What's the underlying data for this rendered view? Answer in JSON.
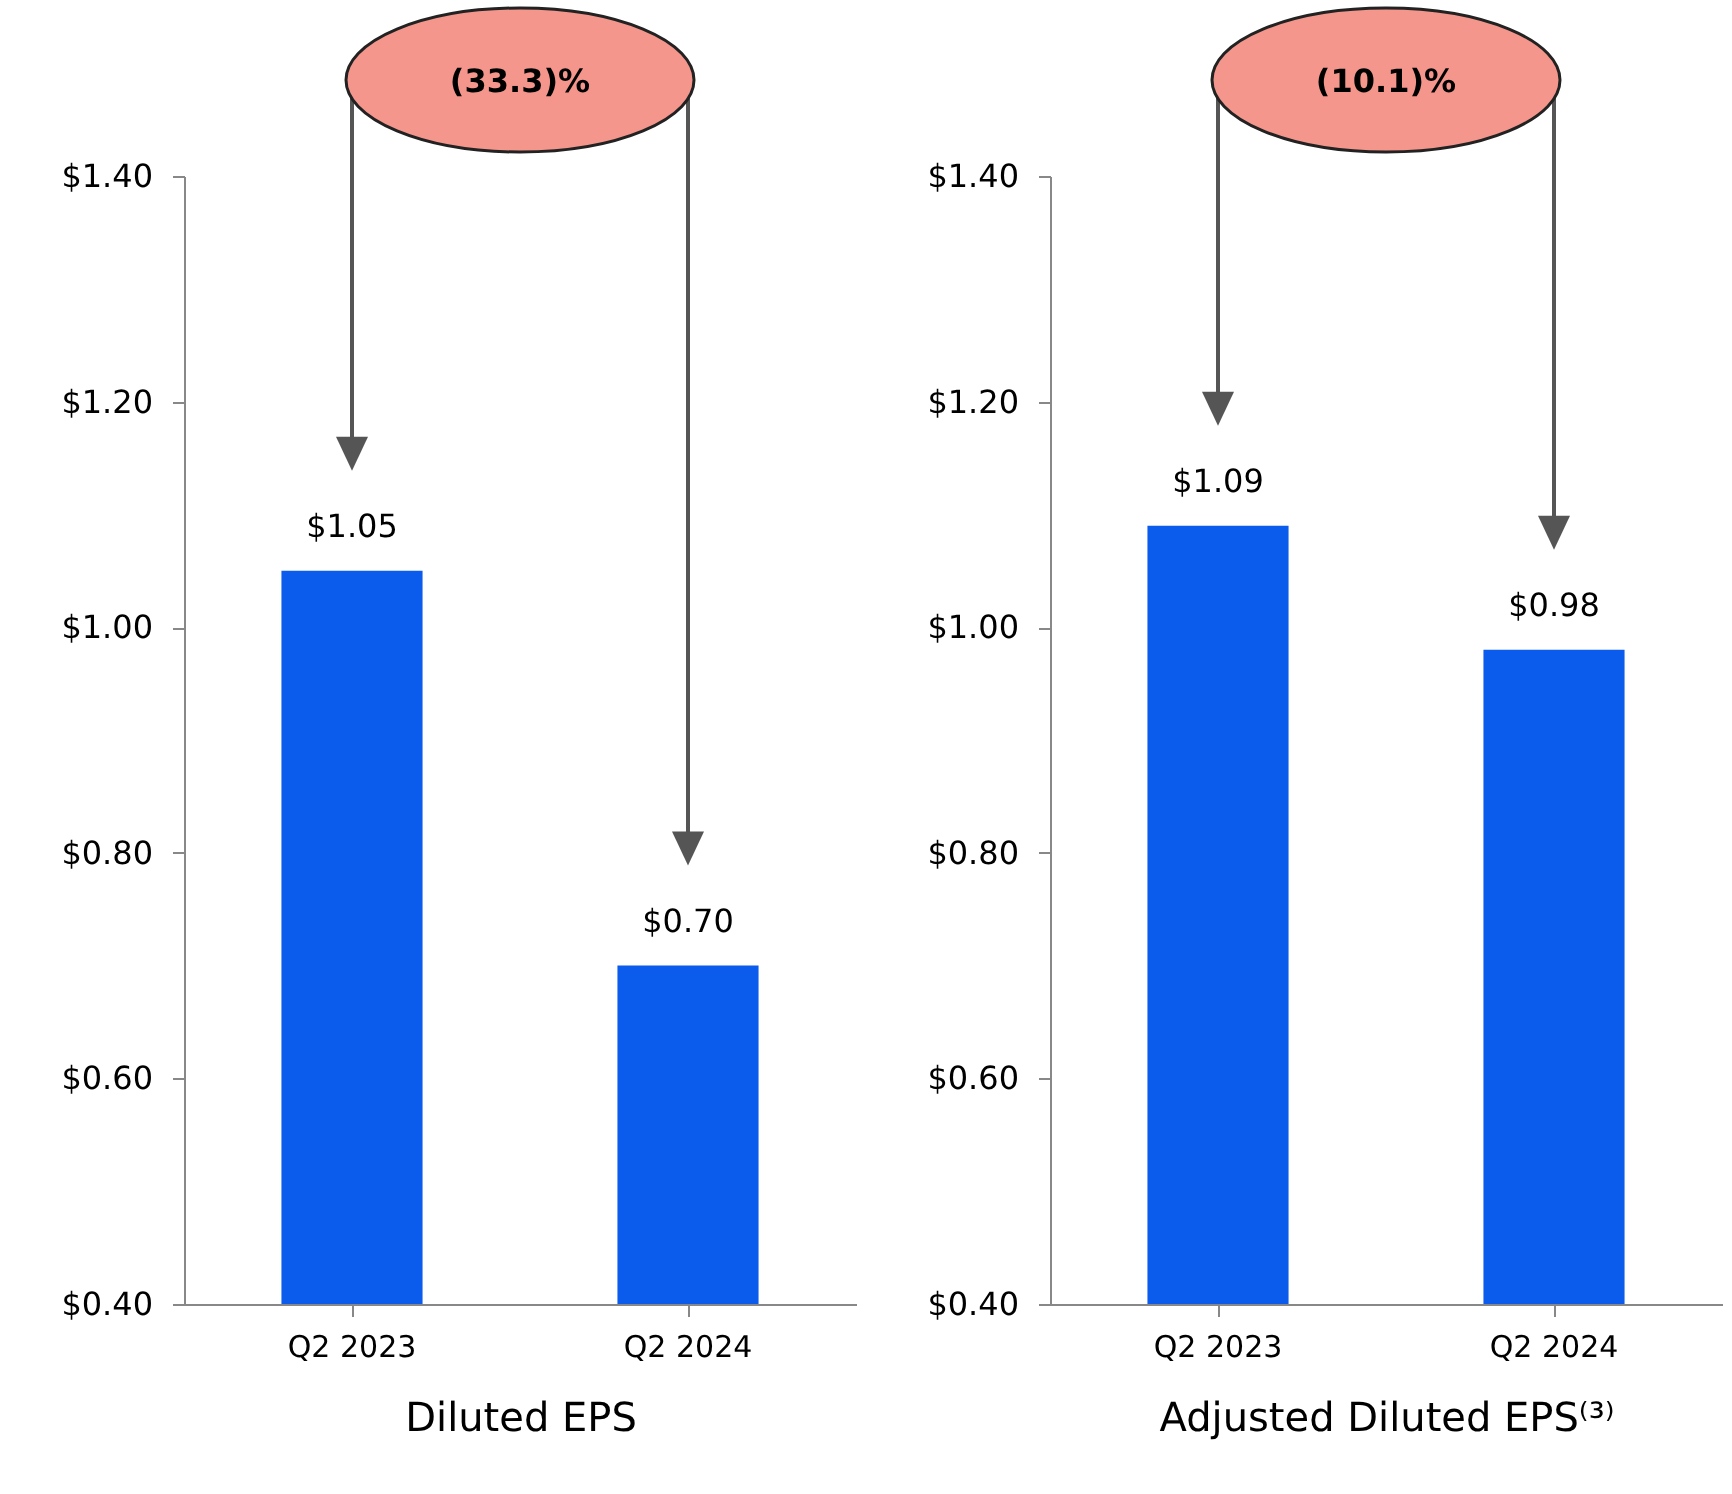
{
  "chart_data": [
    {
      "type": "bar",
      "categories": [
        "Q2 2023",
        "Q2 2024"
      ],
      "values": [
        1.05,
        0.7
      ],
      "value_labels": [
        "$1.05",
        "$0.70"
      ],
      "color": "#0b5ced",
      "ylim": [
        0.4,
        1.4
      ],
      "yticks": [
        {
          "value": 0.4,
          "label": "$0.40"
        },
        {
          "value": 0.6,
          "label": "$0.60"
        },
        {
          "value": 0.8,
          "label": "$0.80"
        },
        {
          "value": 1.0,
          "label": "$1.00"
        },
        {
          "value": 1.2,
          "label": "$1.20"
        },
        {
          "value": 1.4,
          "label": "$1.40"
        }
      ],
      "xlabel": "Diluted EPS",
      "annotations": [
        "(33.3)%"
      ],
      "grid": false
    },
    {
      "type": "bar",
      "categories": [
        "Q2 2023",
        "Q2 2024"
      ],
      "values": [
        1.09,
        0.98
      ],
      "value_labels": [
        "$1.09",
        "$0.98"
      ],
      "color": "#0b5ced",
      "ylim": [
        0.4,
        1.4
      ],
      "yticks": [
        {
          "value": 0.4,
          "label": "$0.40"
        },
        {
          "value": 0.6,
          "label": "$0.60"
        },
        {
          "value": 0.8,
          "label": "$0.80"
        },
        {
          "value": 1.0,
          "label": "$1.00"
        },
        {
          "value": 1.2,
          "label": "$1.20"
        },
        {
          "value": 1.4,
          "label": "$1.40"
        }
      ],
      "xlabel": "Adjusted Diluted EPS⁽³⁾",
      "annotations": [
        "(10.1)%"
      ],
      "grid": false
    }
  ]
}
